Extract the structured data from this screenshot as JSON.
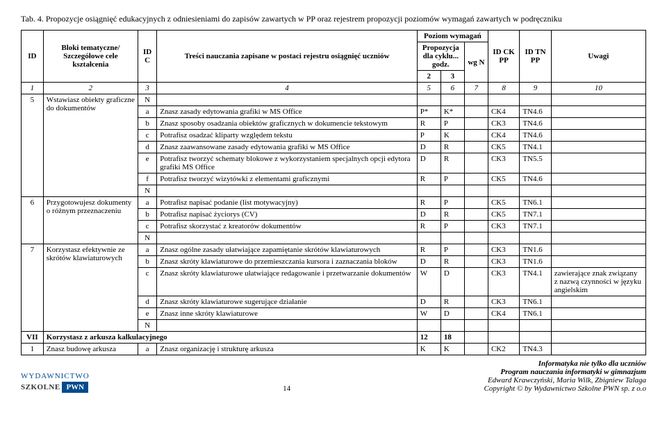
{
  "tabTitle": "Tab. 4. Propozycje osiągnięć edukacyjnych z odniesieniami do zapisów zawartych w PP oraz rejestrem propozycji poziomów wymagań zawartych w podręczniku",
  "headers": {
    "id": "ID",
    "blok": "Bloki tematyczne/ Szczegółowe cele kształcenia",
    "idc": "ID C",
    "tresc": "Treści nauczania zapisane w postaci rejestru osiągnięć uczniów",
    "poziom": "Poziom wymagań",
    "prop": "Propozycja dla cyklu... godz.",
    "wgn": "wg N",
    "idck": "ID CK PP",
    "idtn": "ID TN PP",
    "uwagi": "Uwagi",
    "sub2": "2",
    "sub3": "3"
  },
  "numRow": [
    "1",
    "2",
    "3",
    "4",
    "5",
    "6",
    "7",
    "8",
    "9",
    "10"
  ],
  "rows": [
    {
      "id": "5",
      "blok": "Wstawiasz obiekty graficzne do dokumentów",
      "idc": "N",
      "tresc": "",
      "c2": "",
      "c3": "",
      "wgn": "",
      "ck": "",
      "tn": "",
      "uw": ""
    },
    {
      "idc": "a",
      "tresc": "Znasz zasady edytowania grafiki w MS Office",
      "c2": "P*",
      "c3": "K*",
      "wgn": "",
      "ck": "CK4",
      "tn": "TN4.6",
      "uw": ""
    },
    {
      "idc": "b",
      "tresc": "Znasz sposoby osadzania obiektów graficznych w dokumencie tekstowym",
      "c2": "R",
      "c3": "P",
      "wgn": "",
      "ck": "CK3",
      "tn": "TN4.6",
      "uw": ""
    },
    {
      "idc": "c",
      "tresc": "Potrafisz osadzać kliparty względem tekstu",
      "c2": "P",
      "c3": "K",
      "wgn": "",
      "ck": "CK4",
      "tn": "TN4.6",
      "uw": ""
    },
    {
      "idc": "d",
      "tresc": "Znasz zaawansowane zasady edytowania grafiki w MS Office",
      "c2": "D",
      "c3": "R",
      "wgn": "",
      "ck": "CK5",
      "tn": "TN4.1",
      "uw": ""
    },
    {
      "idc": "e",
      "tresc": "Potrafisz tworzyć schematy blokowe z wykorzystaniem specjalnych opcji edytora grafiki MS Office",
      "c2": "D",
      "c3": "R",
      "wgn": "",
      "ck": "CK3",
      "tn": "TN5.5",
      "uw": ""
    },
    {
      "idc": "f",
      "tresc": "Potrafisz tworzyć wizytówki z  elementami graficznymi",
      "c2": "R",
      "c3": "P",
      "wgn": "",
      "ck": "CK5",
      "tn": "TN4.6",
      "uw": ""
    },
    {
      "idc": "N",
      "tresc": "",
      "c2": "",
      "c3": "",
      "wgn": "",
      "ck": "",
      "tn": "",
      "uw": ""
    },
    {
      "id": "6",
      "blok": "Przygotowujesz dokumenty o różnym przeznaczeniu",
      "idc": "a",
      "tresc": "Potrafisz napisać podanie (list motywacyjny)",
      "c2": "R",
      "c3": "P",
      "wgn": "",
      "ck": "CK5",
      "tn": "TN6.1",
      "uw": ""
    },
    {
      "idc": "b",
      "tresc": "Potrafisz napisać życiorys (CV)",
      "c2": "D",
      "c3": "R",
      "wgn": "",
      "ck": "CK5",
      "tn": "TN7.1",
      "uw": ""
    },
    {
      "idc": "c",
      "tresc": "Potrafisz skorzystać z kreatorów dokumentów",
      "c2": "R",
      "c3": "P",
      "wgn": "",
      "ck": "CK3",
      "tn": "TN7.1",
      "uw": ""
    },
    {
      "idc": "N",
      "tresc": "",
      "c2": "",
      "c3": "",
      "wgn": "",
      "ck": "",
      "tn": "",
      "uw": ""
    },
    {
      "id": "7",
      "blok": "Korzystasz efektywnie ze skrótów klawiaturowych",
      "idc": "a",
      "tresc": "Znasz ogólne zasady ułatwiające zapamiętanie skrótów klawiaturowych",
      "c2": "R",
      "c3": "P",
      "wgn": "",
      "ck": "CK3",
      "tn": "TN1.6",
      "uw": ""
    },
    {
      "idc": "b",
      "tresc": "Znasz skróty klawiaturowe do przemieszczania kursora i zaznaczania bloków",
      "c2": "D",
      "c3": "R",
      "wgn": "",
      "ck": "CK3",
      "tn": "TN1.6",
      "uw": ""
    },
    {
      "idc": "c",
      "tresc": "Znasz skróty klawiaturowe ułatwiające redagowanie i przetwarzanie dokumentów",
      "c2": "W",
      "c3": "D",
      "wgn": "",
      "ck": "CK3",
      "tn": "TN4.1",
      "uw": "zawierające znak związany z nazwą czynności w języku angielskim"
    },
    {
      "idc": "d",
      "tresc": "Znasz skróty klawiaturowe sugerujące działanie",
      "c2": "D",
      "c3": "R",
      "wgn": "",
      "ck": "CK3",
      "tn": "TN6.1",
      "uw": ""
    },
    {
      "idc": "e",
      "tresc": "Znasz inne skróty klawiaturowe",
      "c2": "W",
      "c3": "D",
      "wgn": "",
      "ck": "CK4",
      "tn": "TN6.1",
      "uw": ""
    },
    {
      "idc": "N",
      "tresc": "",
      "c2": "",
      "c3": "",
      "wgn": "",
      "ck": "",
      "tn": "",
      "uw": ""
    }
  ],
  "sectionRow": {
    "id": "VII",
    "blok": "Korzystasz  z arkusza kalkulacyjnego",
    "c2": "12",
    "c3": "18"
  },
  "lastRow": {
    "id": "1",
    "blok": "Znasz budowę arkusza",
    "idc": "a",
    "tresc": "Znasz organizację i strukturę arkusza",
    "c2": "K",
    "c3": "K",
    "wgn": "",
    "ck": "CK2",
    "tn": "TN4.3",
    "uw": ""
  },
  "footer": {
    "pageNum": "14",
    "pub1": "Informatyka nie tylko dla uczniów",
    "pub2": "Program nauczania informatyki w gimnazjum",
    "authors": "Edward Krawczyński, Maria Wilk, Zbigniew Talaga",
    "copy": "Copyright © by Wydawnictwo Szkolne PWN sp. z o.o",
    "wyd": "WYDAWNICTWO",
    "szk": "SZKOLNE",
    "pwn": "PWN"
  }
}
